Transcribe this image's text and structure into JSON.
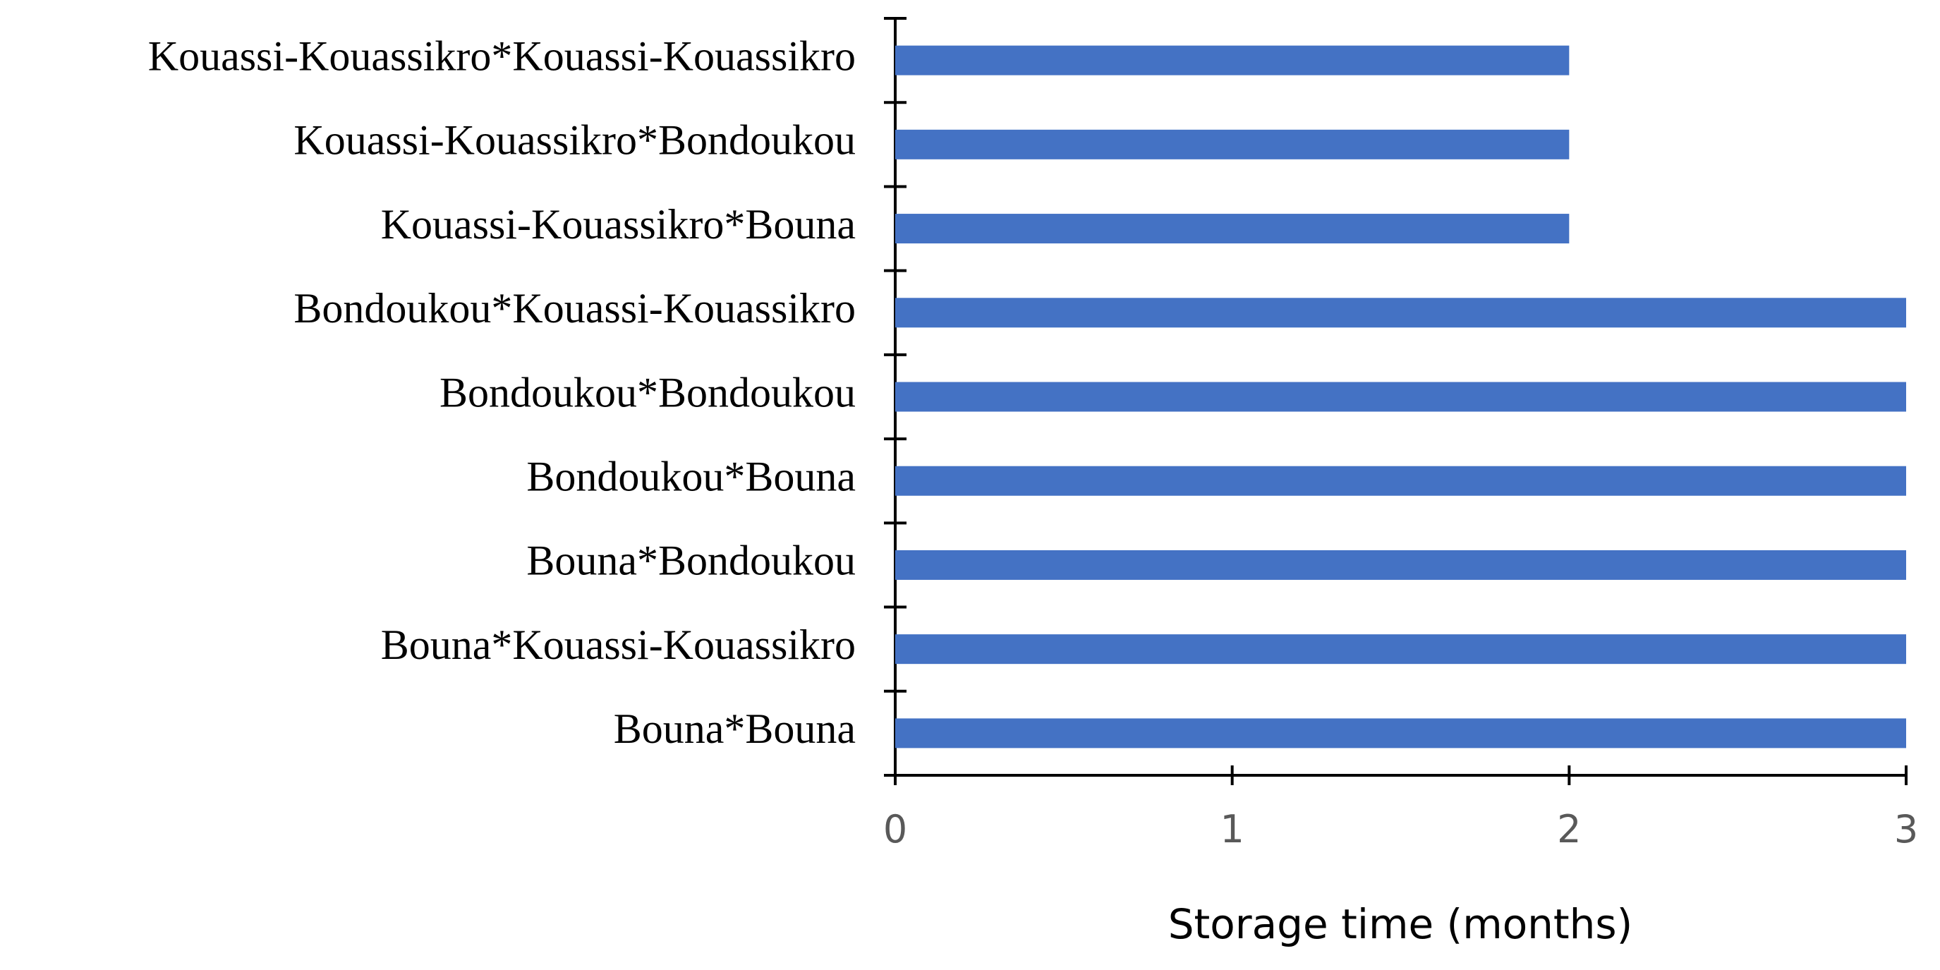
{
  "chart_data": {
    "type": "barh",
    "categories": [
      "Kouassi-Kouassikro*Kouassi-Kouassikro",
      "Kouassi-Kouassikro*Bondoukou",
      "Kouassi-Kouassikro*Bouna",
      "Bondoukou*Kouassi-Kouassikro",
      "Bondoukou*Bondoukou",
      "Bondoukou*Bouna",
      "Bouna*Bondoukou",
      "Bouna*Kouassi-Kouassikro",
      "Bouna*Bouna"
    ],
    "values": [
      2,
      2,
      2,
      3,
      3,
      3,
      3,
      3,
      3
    ],
    "color": "#4472c4",
    "xlim": [
      0,
      3
    ],
    "xticks": [
      0,
      1,
      2,
      3
    ],
    "x_label": "Storage time (months)"
  }
}
